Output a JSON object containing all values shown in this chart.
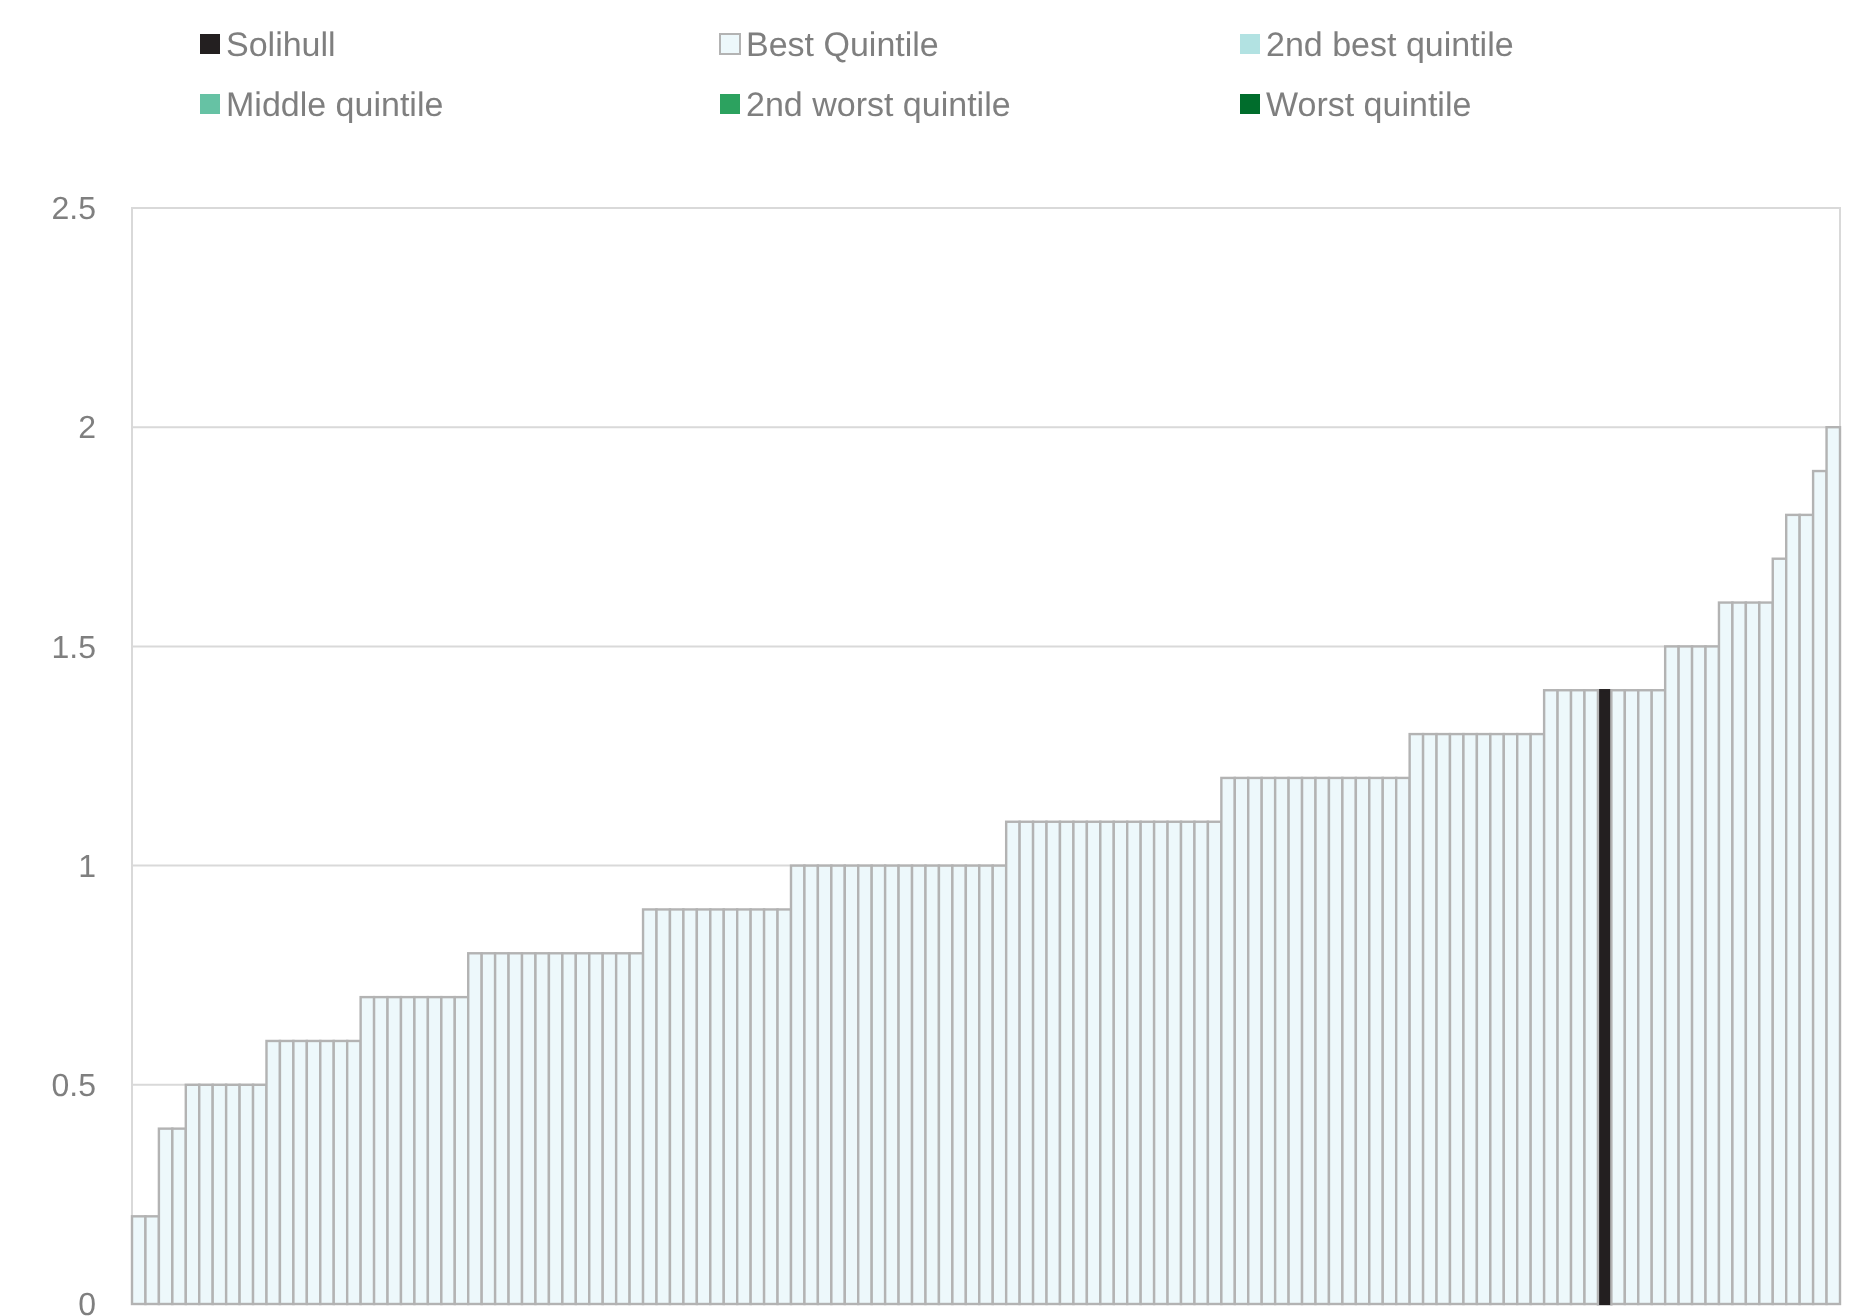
{
  "chart_data": {
    "type": "bar",
    "categories": [
      null,
      null,
      null,
      null,
      null,
      null,
      null,
      null,
      null,
      null,
      null,
      null,
      null,
      null,
      null,
      null,
      null,
      null,
      null,
      null,
      null,
      null,
      null,
      null,
      null,
      null,
      null,
      null,
      null,
      null,
      null,
      null,
      null,
      null,
      null,
      null,
      null,
      null,
      null,
      null,
      null,
      null,
      null,
      null,
      null,
      null,
      null,
      null,
      null,
      null,
      null,
      null,
      null,
      null,
      null,
      null,
      null,
      null,
      null,
      null,
      null,
      null,
      null,
      null,
      null,
      null,
      null,
      null,
      null,
      null,
      null,
      null,
      null,
      null,
      null,
      null,
      null,
      null,
      null,
      null,
      null,
      null,
      null,
      null,
      null,
      null,
      null,
      null,
      null,
      null,
      null,
      null,
      null,
      null,
      null,
      null,
      null,
      null,
      null,
      null,
      null,
      null,
      null,
      null,
      null,
      null,
      null,
      null,
      null,
      null,
      null,
      null,
      null,
      null,
      null,
      null,
      null,
      null,
      null,
      null,
      null,
      null,
      null,
      null,
      null,
      null,
      null
    ],
    "series": [
      {
        "name": "Solihull",
        "color": "#231f20",
        "values": [
          null,
          null,
          null,
          null,
          null,
          null,
          null,
          null,
          null,
          null,
          null,
          null,
          null,
          null,
          null,
          null,
          null,
          null,
          null,
          null,
          null,
          null,
          null,
          null,
          null,
          null,
          null,
          null,
          null,
          null,
          null,
          null,
          null,
          null,
          null,
          null,
          null,
          null,
          null,
          null,
          null,
          null,
          null,
          null,
          null,
          null,
          null,
          null,
          null,
          null,
          null,
          null,
          null,
          null,
          null,
          null,
          null,
          null,
          null,
          null,
          null,
          null,
          null,
          null,
          null,
          null,
          null,
          null,
          null,
          null,
          null,
          null,
          null,
          null,
          null,
          null,
          null,
          null,
          null,
          null,
          null,
          null,
          null,
          null,
          null,
          null,
          null,
          null,
          null,
          null,
          null,
          null,
          null,
          null,
          null,
          null,
          null,
          null,
          null,
          null,
          null,
          null,
          null,
          null,
          null,
          null,
          null,
          null,
          null,
          1.4,
          null,
          null,
          null,
          null,
          null,
          null,
          null,
          null,
          null,
          null,
          null,
          null,
          null,
          null,
          null,
          null,
          null
        ]
      },
      {
        "name": "Best Quintile",
        "color": "#edf8fb",
        "values": [
          0.2,
          0.2,
          0.4,
          0.4,
          0.5,
          0.5,
          0.5,
          0.5,
          0.5,
          0.5,
          0.6,
          0.6,
          0.6,
          0.6,
          0.6,
          0.6,
          0.6,
          0.7,
          0.7,
          0.7,
          0.7,
          0.7,
          0.7,
          0.7,
          0.7,
          0.8,
          0.8,
          0.8,
          0.8,
          0.8,
          0.8,
          0.8,
          0.8,
          0.8,
          0.8,
          0.8,
          0.8,
          0.8,
          0.9,
          0.9,
          0.9,
          0.9,
          0.9,
          0.9,
          0.9,
          0.9,
          0.9,
          0.9,
          0.9,
          1,
          1,
          1,
          1,
          1,
          1,
          1,
          1,
          1,
          1,
          1,
          1,
          1,
          1,
          1,
          1,
          1.1,
          1.1,
          1.1,
          1.1,
          1.1,
          1.1,
          1.1,
          1.1,
          1.1,
          1.1,
          1.1,
          1.1,
          1.1,
          1.1,
          1.1,
          1.1,
          1.2,
          1.2,
          1.2,
          1.2,
          1.2,
          1.2,
          1.2,
          1.2,
          1.2,
          1.2,
          1.2,
          1.2,
          1.2,
          1.2,
          1.3,
          1.3,
          1.3,
          1.3,
          1.3,
          1.3,
          1.3,
          1.3,
          1.3,
          1.3,
          1.4,
          1.4,
          1.4,
          1.4,
          null,
          1.4,
          1.4,
          1.4,
          1.4,
          1.5,
          1.5,
          1.5,
          1.5,
          1.6,
          1.6,
          1.6,
          1.6,
          1.7,
          1.8,
          1.8,
          1.9,
          2
        ]
      },
      {
        "name": "2nd best quintile",
        "color": "#b2e2e2",
        "values": [
          null,
          null,
          null,
          null,
          null,
          null,
          null,
          null,
          null,
          null,
          null,
          null,
          null,
          null,
          null,
          null,
          null,
          null,
          null,
          null,
          null,
          null,
          null,
          null,
          null,
          null,
          null,
          null,
          null,
          null,
          null,
          null,
          null,
          null,
          null,
          null,
          null,
          null,
          null,
          null,
          null,
          null,
          null,
          null,
          null,
          null,
          null,
          null,
          null,
          null,
          null,
          null,
          null,
          null,
          null,
          null,
          null,
          null,
          null,
          null,
          null,
          null,
          null,
          null,
          null,
          null,
          null,
          null,
          null,
          null,
          null,
          null,
          null,
          null,
          null,
          null,
          null,
          null,
          null,
          null,
          null,
          null,
          null,
          null,
          null,
          null,
          null,
          null,
          null,
          null,
          null,
          null,
          null,
          null,
          null,
          null,
          null,
          null,
          null,
          null,
          null,
          null,
          null,
          null,
          null,
          null,
          null,
          null,
          null,
          null,
          null,
          null,
          null,
          null,
          null,
          null,
          null,
          null,
          null,
          null,
          null,
          null,
          null,
          null,
          null,
          null,
          null
        ]
      },
      {
        "name": "Middle quintile",
        "color": "#66c2a4",
        "values": [
          null,
          null,
          null,
          null,
          null,
          null,
          null,
          null,
          null,
          null,
          null,
          null,
          null,
          null,
          null,
          null,
          null,
          null,
          null,
          null,
          null,
          null,
          null,
          null,
          null,
          null,
          null,
          null,
          null,
          null,
          null,
          null,
          null,
          null,
          null,
          null,
          null,
          null,
          null,
          null,
          null,
          null,
          null,
          null,
          null,
          null,
          null,
          null,
          null,
          null,
          null,
          null,
          null,
          null,
          null,
          null,
          null,
          null,
          null,
          null,
          null,
          null,
          null,
          null,
          null,
          null,
          null,
          null,
          null,
          null,
          null,
          null,
          null,
          null,
          null,
          null,
          null,
          null,
          null,
          null,
          null,
          null,
          null,
          null,
          null,
          null,
          null,
          null,
          null,
          null,
          null,
          null,
          null,
          null,
          null,
          null,
          null,
          null,
          null,
          null,
          null,
          null,
          null,
          null,
          null,
          null,
          null,
          null,
          null,
          null,
          null,
          null,
          null,
          null,
          null,
          null,
          null,
          null,
          null,
          null,
          null,
          null,
          null,
          null,
          null,
          null,
          null
        ]
      },
      {
        "name": "2nd worst quintile",
        "color": "#2ca25f",
        "values": [
          null,
          null,
          null,
          null,
          null,
          null,
          null,
          null,
          null,
          null,
          null,
          null,
          null,
          null,
          null,
          null,
          null,
          null,
          null,
          null,
          null,
          null,
          null,
          null,
          null,
          null,
          null,
          null,
          null,
          null,
          null,
          null,
          null,
          null,
          null,
          null,
          null,
          null,
          null,
          null,
          null,
          null,
          null,
          null,
          null,
          null,
          null,
          null,
          null,
          null,
          null,
          null,
          null,
          null,
          null,
          null,
          null,
          null,
          null,
          null,
          null,
          null,
          null,
          null,
          null,
          null,
          null,
          null,
          null,
          null,
          null,
          null,
          null,
          null,
          null,
          null,
          null,
          null,
          null,
          null,
          null,
          null,
          null,
          null,
          null,
          null,
          null,
          null,
          null,
          null,
          null,
          null,
          null,
          null,
          null,
          null,
          null,
          null,
          null,
          null,
          null,
          null,
          null,
          null,
          null,
          null,
          null,
          null,
          null,
          null,
          null,
          null,
          null,
          null,
          null,
          null,
          null,
          null,
          null,
          null,
          null,
          null,
          null,
          null,
          null,
          null,
          null
        ]
      },
      {
        "name": "Worst quintile",
        "color": "#006d2c",
        "values": [
          null,
          null,
          null,
          null,
          null,
          null,
          null,
          null,
          null,
          null,
          null,
          null,
          null,
          null,
          null,
          null,
          null,
          null,
          null,
          null,
          null,
          null,
          null,
          null,
          null,
          null,
          null,
          null,
          null,
          null,
          null,
          null,
          null,
          null,
          null,
          null,
          null,
          null,
          null,
          null,
          null,
          null,
          null,
          null,
          null,
          null,
          null,
          null,
          null,
          null,
          null,
          null,
          null,
          null,
          null,
          null,
          null,
          null,
          null,
          null,
          null,
          null,
          null,
          null,
          null,
          null,
          null,
          null,
          null,
          null,
          null,
          null,
          null,
          null,
          null,
          null,
          null,
          null,
          null,
          null,
          null,
          null,
          null,
          null,
          null,
          null,
          null,
          null,
          null,
          null,
          null,
          null,
          null,
          null,
          null,
          null,
          null,
          null,
          null,
          null,
          null,
          null,
          null,
          null,
          null,
          null,
          null,
          null,
          null,
          null,
          null,
          null,
          null,
          null,
          null,
          null,
          null,
          null,
          null,
          null,
          null,
          null,
          null,
          null,
          null,
          null,
          null
        ]
      }
    ],
    "ylim": [
      0,
      2.5
    ],
    "yticks": [
      0,
      0.5,
      1,
      1.5,
      2,
      2.5
    ],
    "grid": "y",
    "legend": "top"
  }
}
